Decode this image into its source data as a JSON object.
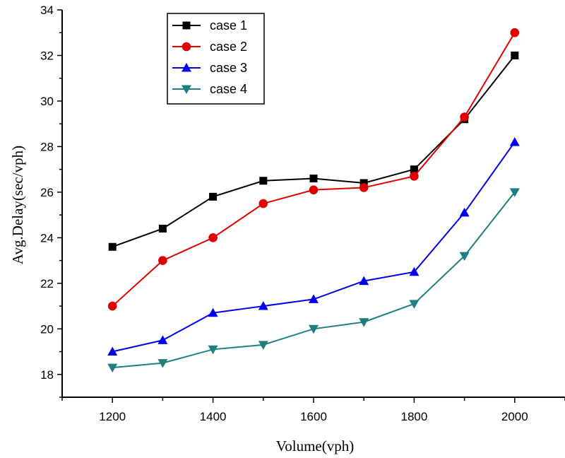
{
  "chart_data": {
    "type": "line",
    "title": "",
    "xlabel": "Volume(vph)",
    "ylabel": "Avg.Delay(sec/vph)",
    "x": [
      1200,
      1300,
      1400,
      1500,
      1600,
      1700,
      1800,
      1900,
      2000
    ],
    "xlim": [
      1100,
      2100
    ],
    "ylim": [
      17,
      34
    ],
    "x_ticks": [
      1200,
      1400,
      1600,
      1800,
      2000
    ],
    "y_ticks": [
      18,
      20,
      22,
      24,
      26,
      28,
      30,
      32,
      34
    ],
    "grid": false,
    "legend_position": "top-left",
    "series": [
      {
        "name": "case 1",
        "color": "#000000",
        "marker": "square",
        "values": [
          23.6,
          24.4,
          25.8,
          26.5,
          26.6,
          26.4,
          27.0,
          29.2,
          32.0
        ]
      },
      {
        "name": "case 2",
        "color": "#e00000",
        "marker": "circle",
        "values": [
          21.0,
          23.0,
          24.0,
          25.5,
          26.1,
          26.2,
          26.7,
          29.3,
          33.0
        ]
      },
      {
        "name": "case 3",
        "color": "#0000ee",
        "marker": "triangle-up",
        "values": [
          19.0,
          19.5,
          20.7,
          21.0,
          21.3,
          22.1,
          22.5,
          25.1,
          28.2
        ]
      },
      {
        "name": "case 4",
        "color": "#1f7f7f",
        "marker": "triangle-down",
        "values": [
          18.3,
          18.5,
          19.1,
          19.3,
          20.0,
          20.3,
          21.1,
          23.2,
          26.0
        ]
      }
    ]
  }
}
